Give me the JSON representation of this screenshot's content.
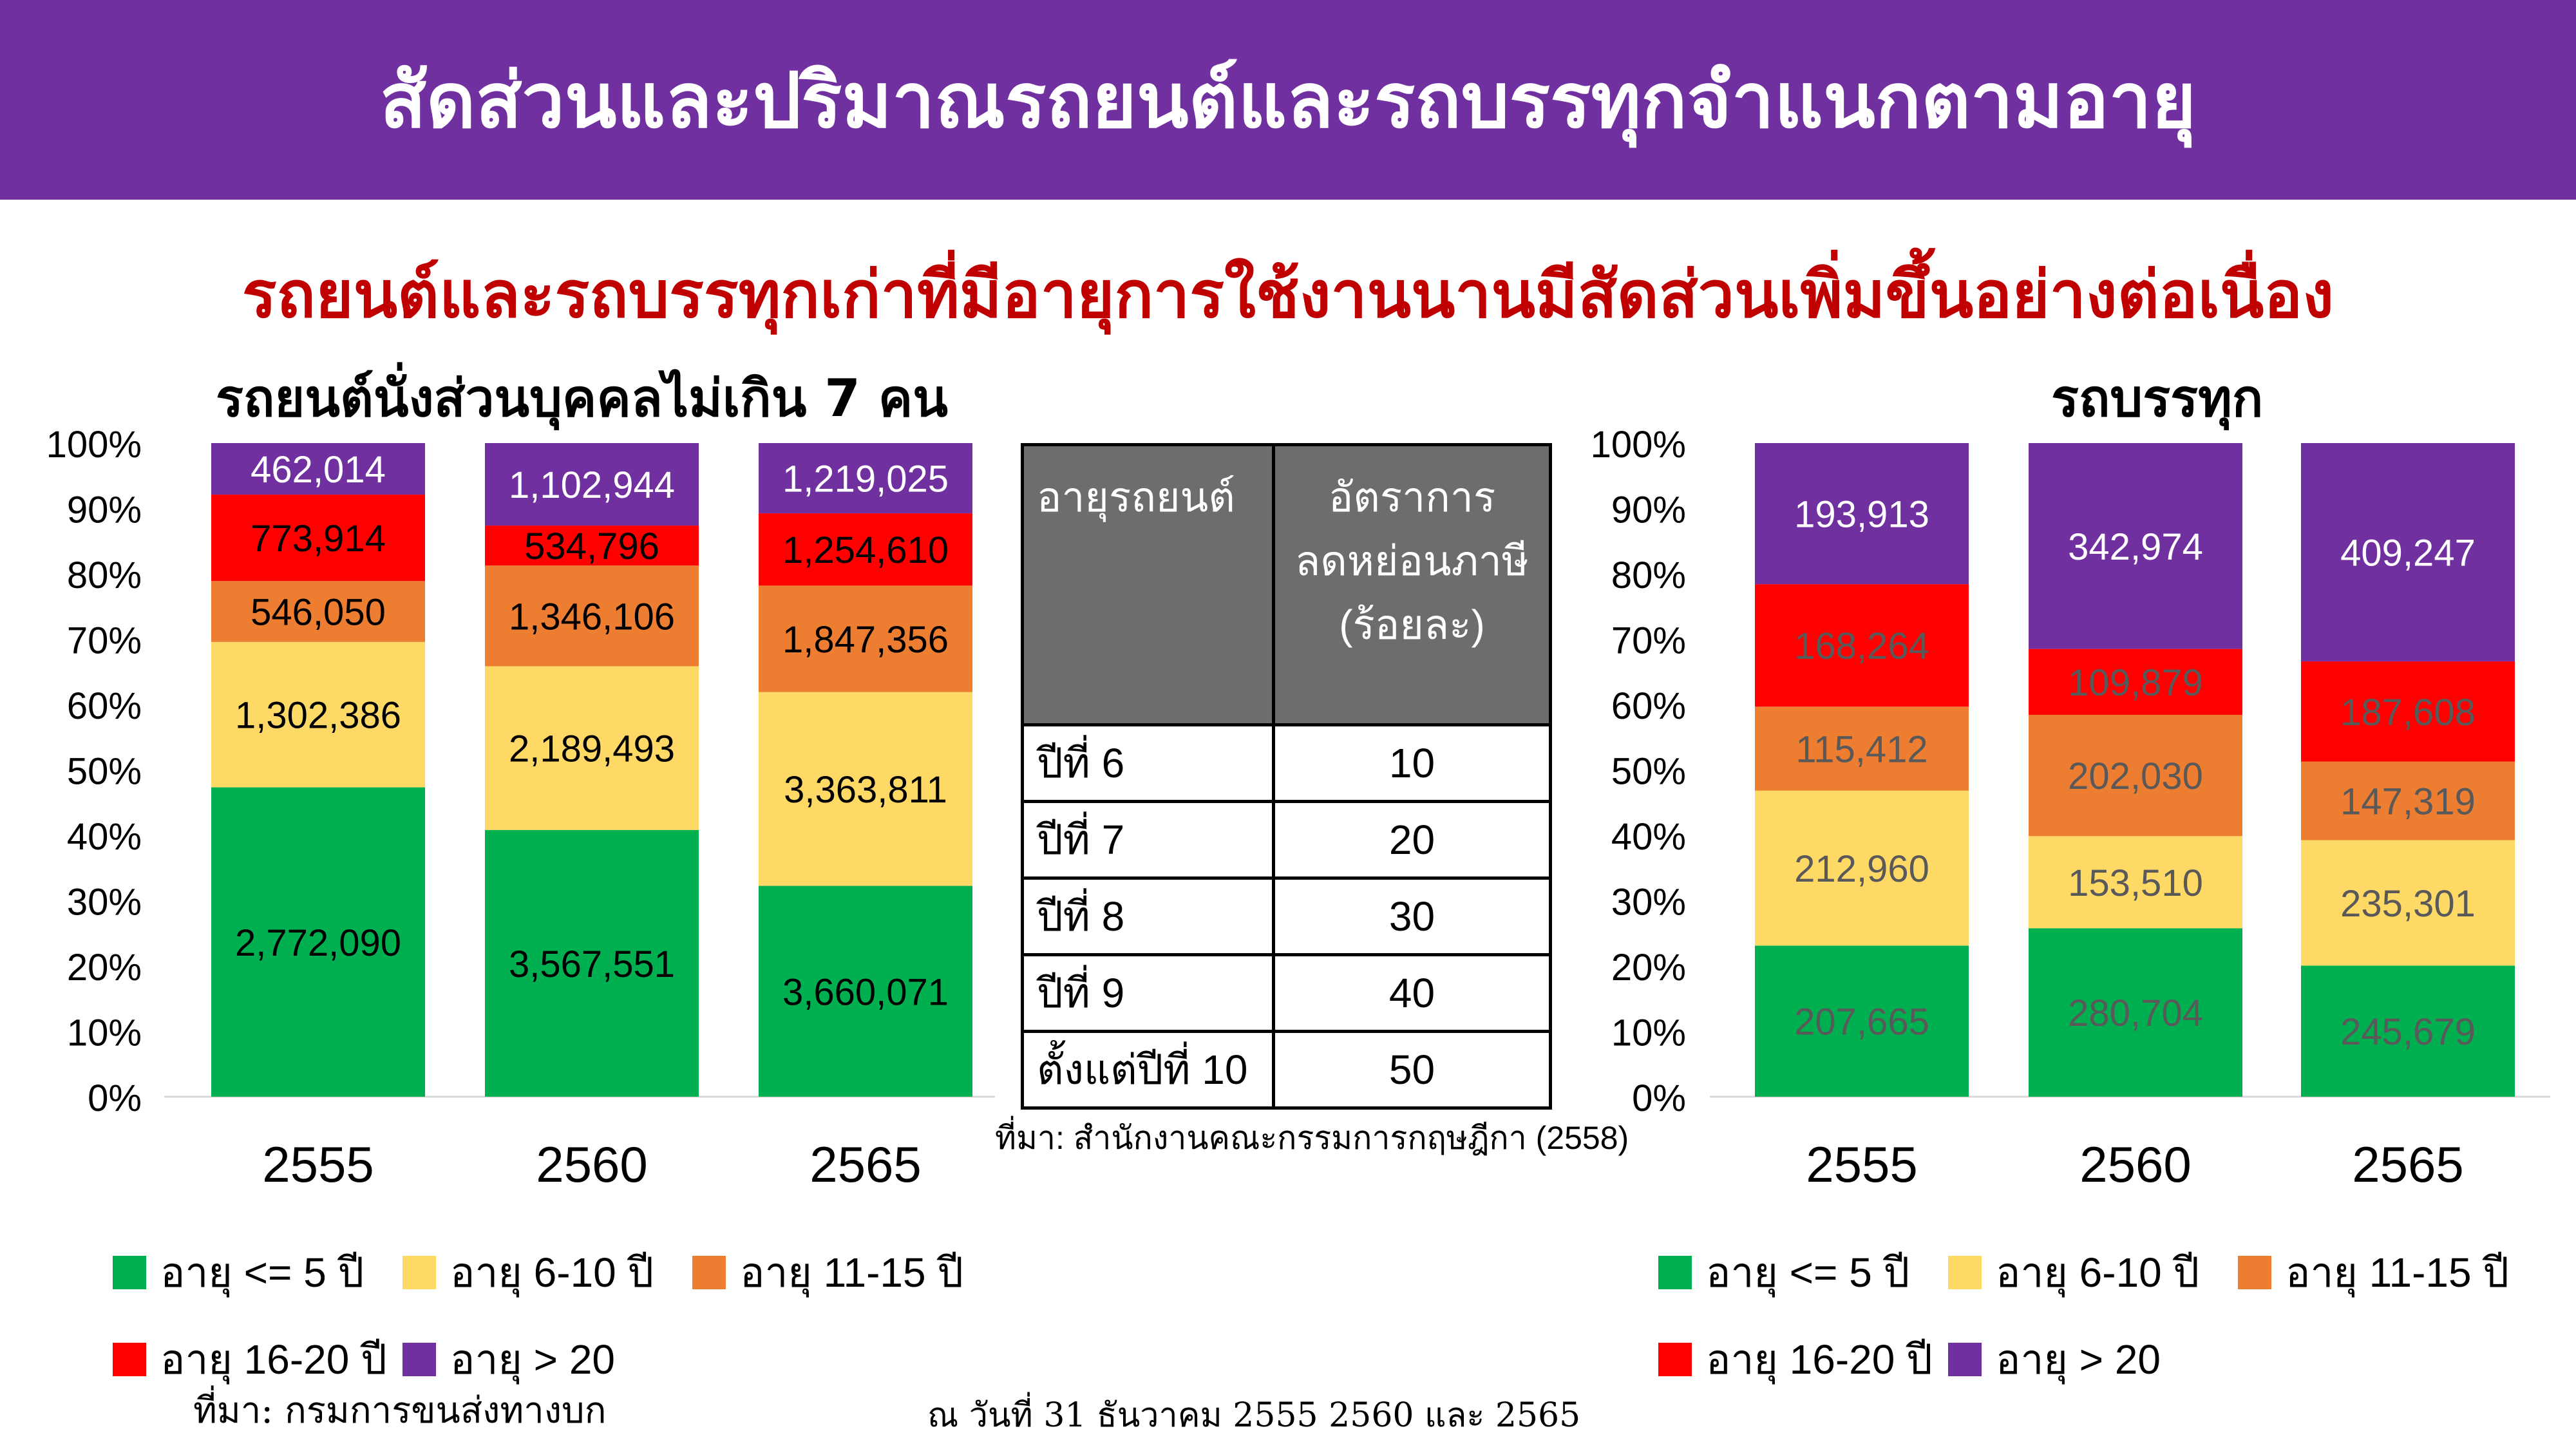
{
  "header": {
    "title": "สัดส่วนและปริมาณรถยนต์และรถบรรทุกจำแนกตามอายุ",
    "subtitle": "รถยนต์และรถบรรทุกเก่าที่มีอายุการใช้งานนานมีสัดส่วนเพิ่มขึ้นอย่างต่อเนื่อง"
  },
  "legend": [
    {
      "label": "อายุ <= 5 ปี",
      "color": "#00b050"
    },
    {
      "label": "อายุ 6-10 ปี",
      "color": "#ffd966"
    },
    {
      "label": "อายุ 11-15 ปี",
      "color": "#ed7d31"
    },
    {
      "label": "อายุ 16-20 ปี",
      "color": "#ff0000"
    },
    {
      "label": "อายุ > 20",
      "color": "#7030a0"
    }
  ],
  "chart_data": [
    {
      "type": "bar",
      "stacked": "percent",
      "title": "รถยนต์นั่งส่วนบุคคลไม่เกิน 7 คน",
      "categories": [
        "2555",
        "2560",
        "2565"
      ],
      "ylim": [
        0,
        100
      ],
      "yticks": [
        "0%",
        "10%",
        "20%",
        "30%",
        "40%",
        "50%",
        "60%",
        "70%",
        "80%",
        "90%",
        "100%"
      ],
      "label_color": "#000000",
      "series": [
        {
          "name": "อายุ <= 5 ปี",
          "values": [
            2772090,
            3567551,
            3660071
          ],
          "labels": [
            "2,772,090",
            "3,567,551",
            "3,660,071"
          ]
        },
        {
          "name": "อายุ 6-10 ปี",
          "values": [
            1302386,
            2189493,
            3363811
          ],
          "labels": [
            "1,302,386",
            "2,189,493",
            "3,363,811"
          ]
        },
        {
          "name": "อายุ 11-15 ปี",
          "values": [
            546050,
            1346106,
            1847356
          ],
          "labels": [
            "546,050",
            "1,346,106",
            "1,847,356"
          ]
        },
        {
          "name": "อายุ 16-20 ปี",
          "values": [
            773914,
            534796,
            1254610
          ],
          "labels": [
            "773,914",
            "534,796",
            "1,254,610"
          ]
        },
        {
          "name": "อายุ > 20",
          "values": [
            462014,
            1102944,
            1219025
          ],
          "labels": [
            "462,014",
            "1,102,944",
            "1,219,025"
          ],
          "label_color": "#ffffff"
        }
      ]
    },
    {
      "type": "bar",
      "stacked": "percent",
      "title": "รถบรรทุก",
      "categories": [
        "2555",
        "2560",
        "2565"
      ],
      "ylim": [
        0,
        100
      ],
      "yticks": [
        "0%",
        "10%",
        "20%",
        "30%",
        "40%",
        "50%",
        "60%",
        "70%",
        "80%",
        "90%",
        "100%"
      ],
      "label_color": "#595959",
      "series": [
        {
          "name": "อายุ <= 5 ปี",
          "values": [
            207665,
            280704,
            245679
          ],
          "labels": [
            "207,665",
            "280,704",
            "245,679"
          ]
        },
        {
          "name": "อายุ 6-10 ปี",
          "values": [
            212960,
            153510,
            235301
          ],
          "labels": [
            "212,960",
            "153,510",
            "235,301"
          ]
        },
        {
          "name": "อายุ 11-15 ปี",
          "values": [
            115412,
            202030,
            147319
          ],
          "labels": [
            "115,412",
            "202,030",
            "147,319"
          ]
        },
        {
          "name": "อายุ 16-20 ปี",
          "values": [
            168264,
            109879,
            187608
          ],
          "labels": [
            "168,264",
            "109,879",
            "187,608"
          ]
        },
        {
          "name": "อายุ > 20",
          "values": [
            193913,
            342974,
            409247
          ],
          "labels": [
            "193,913",
            "342,974",
            "409,247"
          ],
          "label_color": "#ffffff"
        }
      ]
    }
  ],
  "tax_table": {
    "header": {
      "col1": "อายุรถยนต์",
      "col2_line1": "อัตราการ",
      "col2_line2": "ลดหย่อนภาษี",
      "col2_line3": "(ร้อยละ)"
    },
    "rows": [
      {
        "age": "ปีที่ 6",
        "rate": "10"
      },
      {
        "age": "ปีที่ 7",
        "rate": "20"
      },
      {
        "age": "ปีที่ 8",
        "rate": "30"
      },
      {
        "age": "ปีที่ 9",
        "rate": "40"
      },
      {
        "age": "ตั้งแต่ปีที่ 10",
        "rate": "50"
      }
    ],
    "source": "ที่มา: สำนักงานคณะกรรมการกฤษฎีกา (2558)"
  },
  "footer": {
    "source": "ที่มา: กรมการขนส่งทางบก",
    "date": "ณ วันที่ 31 ธันวาคม 2555 2560 และ 2565"
  }
}
